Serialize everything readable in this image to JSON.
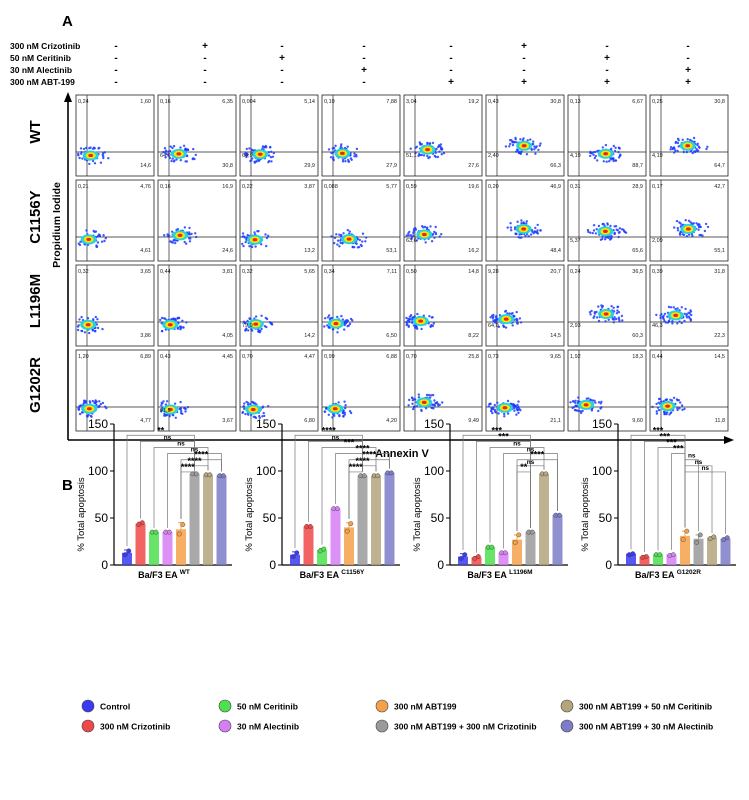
{
  "panels": {
    "a": "A",
    "b": "B"
  },
  "treatment_table": {
    "rows": [
      {
        "label": "300 nM Crizotinib",
        "signs": [
          "-",
          "+",
          "-",
          "-",
          "-",
          "+",
          "-",
          "-"
        ]
      },
      {
        "label": "50 nM Ceritinib",
        "signs": [
          "-",
          "-",
          "+",
          "-",
          "-",
          "-",
          "+",
          "-"
        ]
      },
      {
        "label": "30 nM Alectinib",
        "signs": [
          "-",
          "-",
          "-",
          "+",
          "-",
          "-",
          "-",
          "+"
        ]
      },
      {
        "label": "300 nM ABT-199",
        "signs": [
          "-",
          "-",
          "-",
          "-",
          "+",
          "+",
          "+",
          "+"
        ]
      }
    ]
  },
  "flow": {
    "x_axis_label": "Annexin V",
    "y_axis_label": "Propidium Iodide",
    "row_labels": [
      "WT",
      "C1156Y",
      "L1196M",
      "G1202R"
    ],
    "cells": [
      [
        {
          "ul": "0,24",
          "ur": "1,60",
          "ll": "",
          "lr": "14,6"
        },
        {
          "ul": "0,16",
          "ur": "6,35",
          "ll": "64,9",
          "lr": "30,8"
        },
        {
          "ul": "0,004",
          "ur": "5,14",
          "ll": "64,9",
          "lr": "29,9"
        },
        {
          "ul": "0,19",
          "ur": "7,88",
          "ll": "",
          "lr": "27,9"
        },
        {
          "ul": "3,04",
          "ur": "19,2",
          "ll": "51,1",
          "lr": "27,6"
        },
        {
          "ul": "0,43",
          "ur": "30,8",
          "ll": "2,40",
          "lr": "66,3"
        },
        {
          "ul": "0,13",
          "ur": "6,67",
          "ll": "4,19",
          "lr": "88,7"
        },
        {
          "ul": "0,25",
          "ur": "30,8",
          "ll": "4,19",
          "lr": "64,7"
        }
      ],
      [
        {
          "ul": "0,21",
          "ur": "4,76",
          "ll": "",
          "lr": "4,61"
        },
        {
          "ul": "0,16",
          "ur": "16,9",
          "ll": "",
          "lr": "24,6"
        },
        {
          "ul": "0,22",
          "ur": "3,87",
          "ll": "",
          "lr": "13,2"
        },
        {
          "ul": "0,088",
          "ur": "5,77",
          "ll": "",
          "lr": "53,1"
        },
        {
          "ul": "0,59",
          "ur": "19,6",
          "ll": "63,6",
          "lr": "16,2"
        },
        {
          "ul": "0,20",
          "ur": "46,9",
          "ll": "",
          "lr": "48,4"
        },
        {
          "ul": "0,31",
          "ur": "28,9",
          "ll": "5,37",
          "lr": "65,6"
        },
        {
          "ul": "0,17",
          "ur": "42,7",
          "ll": "2,09",
          "lr": "55,1"
        }
      ],
      [
        {
          "ul": "0,32",
          "ur": "3,65",
          "ll": "",
          "lr": "3,86"
        },
        {
          "ul": "0,44",
          "ur": "3,81",
          "ll": "",
          "lr": "4,05"
        },
        {
          "ul": "0,32",
          "ur": "5,65",
          "ll": "79,9",
          "lr": "14,2"
        },
        {
          "ul": "0,34",
          "ur": "7,11",
          "ll": "",
          "lr": "6,50"
        },
        {
          "ul": "0,50",
          "ur": "14,8",
          "ll": "",
          "lr": "8,22"
        },
        {
          "ul": "9,28",
          "ur": "20,7",
          "ll": "64,0",
          "lr": "14,5"
        },
        {
          "ul": "0,24",
          "ur": "36,5",
          "ll": "2,93",
          "lr": "60,3"
        },
        {
          "ul": "0,39",
          "ur": "31,8",
          "ll": "46,3",
          "lr": "22,3"
        }
      ],
      [
        {
          "ul": "1,20",
          "ur": "6,89",
          "ll": "",
          "lr": "4,77"
        },
        {
          "ul": "0,43",
          "ur": "4,45",
          "ll": "91,5",
          "lr": "3,67"
        },
        {
          "ul": "0,70",
          "ur": "4,47",
          "ll": "",
          "lr": "6,80"
        },
        {
          "ul": "0,99",
          "ur": "6,88",
          "ll": "",
          "lr": "4,20"
        },
        {
          "ul": "0,70",
          "ur": "25,8",
          "ll": "",
          "lr": "9,49"
        },
        {
          "ul": "0,73",
          "ur": "9,65",
          "ll": "",
          "lr": "21,1"
        },
        {
          "ul": "1,92",
          "ur": "18,3",
          "ll": "",
          "lr": "9,60"
        },
        {
          "ul": "0,44",
          "ur": "14,5",
          "ll": "",
          "lr": "11,8"
        }
      ]
    ]
  },
  "chart_data": [
    {
      "type": "bar",
      "title": "",
      "xlabel": "Ba/F3 EA",
      "xlabel_sup": "WT",
      "ylabel": "% Total apoptosis",
      "ylim": [
        0,
        150
      ],
      "yticks": [
        0,
        50,
        100,
        150
      ],
      "categories": [
        "Control",
        "300 nM Crizotinib",
        "50 nM Ceritinib",
        "30 nM Alectinib",
        "300 nM ABT199",
        "300 nM ABT199 + 300 nM Crizotinib",
        "300 nM ABT199 + 50 nM Ceritinib",
        "300 nM ABT199 + 30 nM Alectinib"
      ],
      "values": [
        13,
        44,
        35,
        35,
        38,
        97,
        96,
        95
      ],
      "errors": [
        3,
        1.5,
        0.5,
        0.5,
        7,
        0.5,
        0.5,
        0.5
      ],
      "points": [
        [
          11,
          15
        ],
        [
          43,
          45
        ],
        [
          35,
          35
        ],
        [
          35,
          35
        ],
        [
          33,
          43
        ],
        [
          97,
          97
        ],
        [
          96,
          96
        ],
        [
          95,
          95
        ]
      ],
      "significance": [
        {
          "from": 0,
          "to": 5,
          "label": "**"
        },
        {
          "from": 1,
          "to": 5,
          "label": "ns"
        },
        {
          "from": 2,
          "to": 6,
          "label": "ns"
        },
        {
          "from": 3,
          "to": 7,
          "label": "ns"
        },
        {
          "from": 4,
          "to": 7,
          "label": "****"
        },
        {
          "from": 4,
          "to": 6,
          "label": "****"
        },
        {
          "from": 4,
          "to": 5,
          "label": "****"
        }
      ]
    },
    {
      "type": "bar",
      "title": "",
      "xlabel": "Ba/F3 EA",
      "xlabel_sup": "C1156Y",
      "ylabel": "% Total apoptosis",
      "ylim": [
        0,
        150
      ],
      "yticks": [
        0,
        50,
        100,
        150
      ],
      "categories": [
        "Control",
        "300 nM Crizotinib",
        "50 nM Ceritinib",
        "30 nM Alectinib",
        "300 nM ABT199",
        "300 nM ABT199 + 300 nM Crizotinib",
        "300 nM ABT199 + 50 nM Ceritinib",
        "300 nM ABT199 + 30 nM Alectinib"
      ],
      "values": [
        11,
        41,
        16,
        60,
        40,
        95,
        95,
        98
      ],
      "errors": [
        3,
        1,
        1.5,
        1,
        5,
        0.5,
        0.5,
        0.5
      ],
      "points": [
        [
          9,
          13
        ],
        [
          41,
          41
        ],
        [
          15,
          17
        ],
        [
          60,
          60
        ],
        [
          36,
          44
        ],
        [
          95,
          95
        ],
        [
          95,
          95
        ],
        [
          98,
          98
        ]
      ],
      "significance": [
        {
          "from": 0,
          "to": 5,
          "label": "****"
        },
        {
          "from": 1,
          "to": 5,
          "label": "ns"
        },
        {
          "from": 2,
          "to": 6,
          "label": "***"
        },
        {
          "from": 3,
          "to": 7,
          "label": "****"
        },
        {
          "from": 4,
          "to": 7,
          "label": "****"
        },
        {
          "from": 4,
          "to": 6,
          "label": "****"
        },
        {
          "from": 4,
          "to": 5,
          "label": "****"
        }
      ]
    },
    {
      "type": "bar",
      "title": "",
      "xlabel": "Ba/F3 EA",
      "xlabel_sup": "L1196M",
      "ylabel": "% Total apoptosis",
      "ylim": [
        0,
        150
      ],
      "yticks": [
        0,
        50,
        100,
        150
      ],
      "categories": [
        "Control",
        "300 nM Crizotinib",
        "50 nM Ceritinib",
        "30 nM Alectinib",
        "300 nM ABT199",
        "300 nM ABT199 + 300 nM Crizotinib",
        "300 nM ABT199 + 50 nM Ceritinib",
        "300 nM ABT199 + 30 nM Alectinib"
      ],
      "values": [
        9,
        8,
        19,
        13,
        27,
        35,
        97,
        53
      ],
      "errors": [
        3,
        1,
        1,
        0.5,
        5,
        0.5,
        0.5,
        0.5
      ],
      "points": [
        [
          7,
          11
        ],
        [
          7,
          9
        ],
        [
          19,
          19
        ],
        [
          13,
          13
        ],
        [
          24,
          32
        ],
        [
          35,
          35
        ],
        [
          97,
          97
        ],
        [
          53,
          53
        ]
      ],
      "significance": [
        {
          "from": 0,
          "to": 5,
          "label": "***"
        },
        {
          "from": 1,
          "to": 5,
          "label": "***"
        },
        {
          "from": 2,
          "to": 6,
          "label": "ns"
        },
        {
          "from": 3,
          "to": 7,
          "label": "ns"
        },
        {
          "from": 4,
          "to": 7,
          "label": "****"
        },
        {
          "from": 4,
          "to": 6,
          "label": "ns"
        },
        {
          "from": 4,
          "to": 5,
          "label": "**"
        }
      ]
    },
    {
      "type": "bar",
      "title": "",
      "xlabel": "Ba/F3 EA",
      "xlabel_sup": "G1202R",
      "ylabel": "% Total apoptosis",
      "ylim": [
        0,
        150
      ],
      "yticks": [
        0,
        50,
        100,
        150
      ],
      "categories": [
        "Control",
        "300 nM Crizotinib",
        "50 nM Ceritinib",
        "30 nM Alectinib",
        "300 nM ABT199",
        "300 nM ABT199 + 300 nM Crizotinib",
        "300 nM ABT199 + 50 nM Ceritinib",
        "300 nM ABT199 + 30 nM Alectinib"
      ],
      "values": [
        12,
        9,
        11,
        11,
        31,
        28,
        29,
        28
      ],
      "errors": [
        0.5,
        1,
        0.5,
        1,
        5,
        4,
        1,
        1
      ],
      "points": [
        [
          11,
          12
        ],
        [
          8,
          9
        ],
        [
          11,
          11
        ],
        [
          10,
          11
        ],
        [
          27,
          36
        ],
        [
          24,
          32
        ],
        [
          28,
          30
        ],
        [
          27,
          29
        ]
      ],
      "significance": [
        {
          "from": 0,
          "to": 4,
          "label": "***"
        },
        {
          "from": 1,
          "to": 4,
          "label": "***"
        },
        {
          "from": 2,
          "to": 4,
          "label": "***"
        },
        {
          "from": 3,
          "to": 4,
          "label": "***"
        },
        {
          "from": 4,
          "to": 5,
          "label": "ns"
        },
        {
          "from": 4,
          "to": 6,
          "label": "ns"
        },
        {
          "from": 4,
          "to": 7,
          "label": "ns"
        }
      ]
    }
  ],
  "legend": {
    "items": [
      {
        "label": "Control",
        "color": "#3a3af2"
      },
      {
        "label": "300 nM Crizotinib",
        "color": "#f04848"
      },
      {
        "label": "50 nM Ceritinib",
        "color": "#4ee04e"
      },
      {
        "label": "30 nM Alectinib",
        "color": "#d77ef5"
      },
      {
        "label": "300 nM ABT199",
        "color": "#f5a14a"
      },
      {
        "label": "300 nM ABT199 + 300 nM Crizotinib",
        "color": "#9a9a9a"
      },
      {
        "label": "300 nM ABT199 + 50 nM Ceritinib",
        "color": "#b4a57c"
      },
      {
        "label": "300 nM ABT199 + 30 nM Alectinib",
        "color": "#7c7cc8"
      }
    ]
  },
  "colors": {
    "point": "#333333",
    "density_low": "#1f3cff",
    "density_mid": "#21d4e0",
    "density_high": "#ffe000",
    "density_peak": "#e02a14"
  }
}
